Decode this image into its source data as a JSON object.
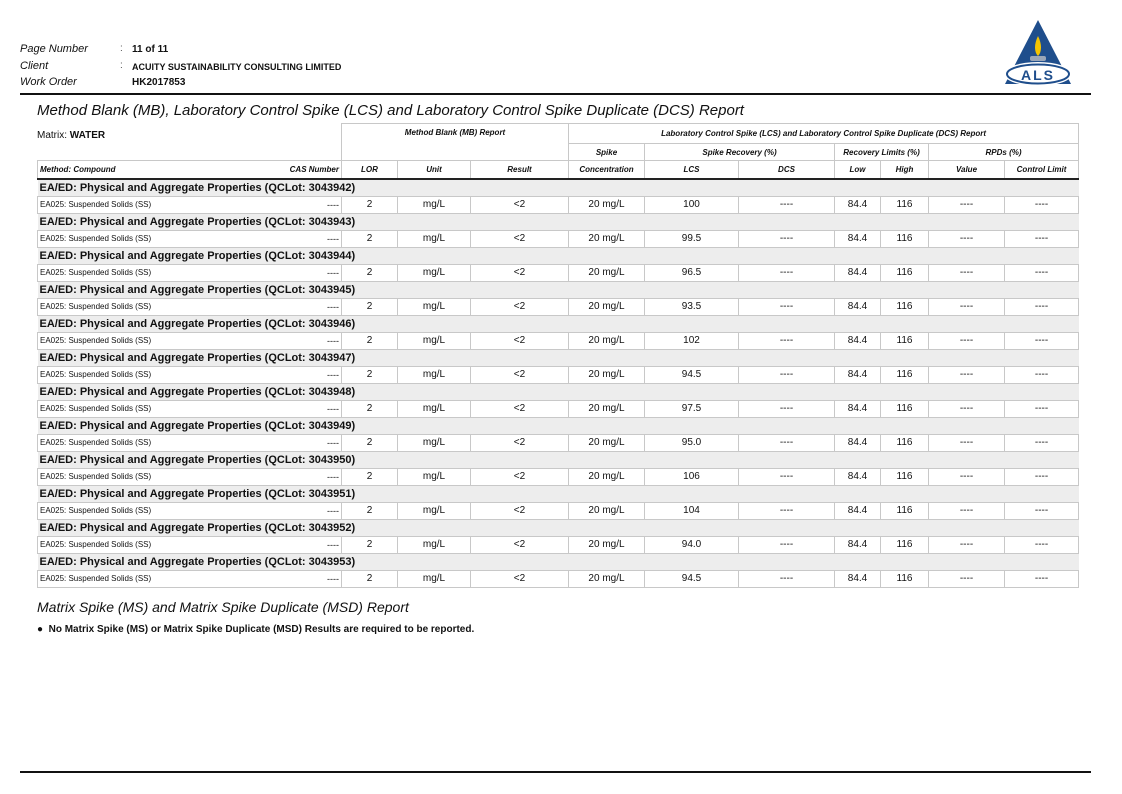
{
  "header": {
    "page_label": "Page Number",
    "page_value": "11 of 11",
    "client_label": "Client",
    "client_value": "ACUITY SUSTAINABILITY CONSULTING LIMITED",
    "work_order_label": "Work Order",
    "work_order_value": "HK2017853",
    "logo_text": "ALS",
    "colors": {
      "logo_blue": "#1f4e8c",
      "logo_flame": "#f5c400"
    }
  },
  "report_title": "Method Blank (MB), Laboratory Control Spike (LCS) and Laboratory Control Spike Duplicate (DCS) Report",
  "matrix_label": "Matrix: ",
  "matrix_value": "WATER",
  "table": {
    "mb_title": "Method Blank (MB) Report",
    "lcs_title": "Laboratory Control Spike (LCS) and Laboratory Control Spike Duplicate (DCS) Report",
    "spike": "Spike",
    "spike_recovery": "Spike Recovery (%)",
    "recovery_limits": "Recovery Limits (%)",
    "rpds": "RPDs (%)",
    "method_compound": "Method: Compound",
    "cas_number": "CAS Number",
    "lor": "LOR",
    "unit": "Unit",
    "result": "Result",
    "concentration": "Concentration",
    "lcs": "LCS",
    "dcs": "DCS",
    "low": "Low",
    "high": "High",
    "value": "Value",
    "control_limit": "Control Limit",
    "groups": [
      {
        "title": "EA/ED: Physical and Aggregate Properties  (QCLot: 3043942)",
        "lcs": "100"
      },
      {
        "title": "EA/ED: Physical and Aggregate Properties  (QCLot: 3043943)",
        "lcs": "99.5"
      },
      {
        "title": "EA/ED: Physical and Aggregate Properties  (QCLot: 3043944)",
        "lcs": "96.5"
      },
      {
        "title": "EA/ED: Physical and Aggregate Properties  (QCLot: 3043945)",
        "lcs": "93.5"
      },
      {
        "title": "EA/ED: Physical and Aggregate Properties  (QCLot: 3043946)",
        "lcs": "102"
      },
      {
        "title": "EA/ED: Physical and Aggregate Properties  (QCLot: 3043947)",
        "lcs": "94.5"
      },
      {
        "title": "EA/ED: Physical and Aggregate Properties  (QCLot: 3043948)",
        "lcs": "97.5"
      },
      {
        "title": "EA/ED: Physical and Aggregate Properties  (QCLot: 3043949)",
        "lcs": "95.0"
      },
      {
        "title": "EA/ED: Physical and Aggregate Properties  (QCLot: 3043950)",
        "lcs": "106"
      },
      {
        "title": "EA/ED: Physical and Aggregate Properties  (QCLot: 3043951)",
        "lcs": "104"
      },
      {
        "title": "EA/ED: Physical and Aggregate Properties  (QCLot: 3043952)",
        "lcs": "94.0"
      },
      {
        "title": "EA/ED: Physical and Aggregate Properties  (QCLot: 3043953)",
        "lcs": "94.5"
      }
    ],
    "row_common": {
      "compound": "EA025: Suspended Solids (SS)",
      "cas": "----",
      "lor": "2",
      "unit": "mg/L",
      "result": "<2",
      "spike": "20 mg/L",
      "dcs": "----",
      "low": "84.4",
      "high": "116",
      "value": "----",
      "control_limit": "----"
    }
  },
  "ms_title": "Matrix Spike (MS) and Matrix Spike Duplicate (MSD) Report",
  "ms_note": "No Matrix Spike (MS) or Matrix Spike Duplicate (MSD) Results are required to be reported."
}
